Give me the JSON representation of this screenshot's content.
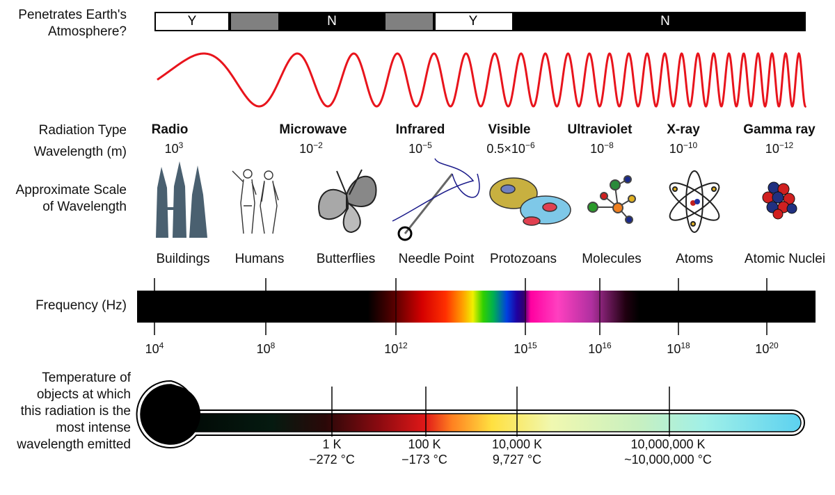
{
  "row_labels": {
    "atmosphere_1": "Penetrates Earth's",
    "atmosphere_2": "Atmosphere?",
    "radiation_type": "Radiation Type",
    "wavelength": "Wavelength (m)",
    "scale_1": "Approximate Scale",
    "scale_2": "of Wavelength",
    "frequency": "Frequency (Hz)",
    "temp_1": "Temperature of",
    "temp_2": "objects at which",
    "temp_3": "this radiation is the",
    "temp_4": "most intense",
    "temp_5": "wavelength emitted"
  },
  "atmosphere": [
    {
      "label": "Y",
      "color": "#ffffff"
    },
    {
      "label": "",
      "color": "#808080"
    },
    {
      "label": "N",
      "color": "#000000"
    },
    {
      "label": "",
      "color": "#808080"
    },
    {
      "label": "Y",
      "color": "#ffffff"
    },
    {
      "label": "N",
      "color": "#000000"
    }
  ],
  "radiation_types": [
    {
      "name": "Radio",
      "base": "10",
      "exp": "3",
      "prefix": ""
    },
    {
      "name": "Microwave",
      "base": "10",
      "exp": "−2",
      "prefix": ""
    },
    {
      "name": "Infrared",
      "base": "10",
      "exp": "−5",
      "prefix": ""
    },
    {
      "name": "Visible",
      "base": "10",
      "exp": "−6",
      "prefix": "0.5×"
    },
    {
      "name": "Ultraviolet",
      "base": "10",
      "exp": "−8",
      "prefix": ""
    },
    {
      "name": "X-ray",
      "base": "10",
      "exp": "−10",
      "prefix": ""
    },
    {
      "name": "Gamma ray",
      "base": "10",
      "exp": "−12",
      "prefix": ""
    }
  ],
  "scale_objects": [
    {
      "name": "Buildings",
      "icon": "building-icon"
    },
    {
      "name": "Humans",
      "icon": "humans-icon"
    },
    {
      "name": "Butterflies",
      "icon": "butterfly-icon"
    },
    {
      "name": "Needle Point",
      "icon": "needle-icon"
    },
    {
      "name": "Protozoans",
      "icon": "protozoan-icon"
    },
    {
      "name": "Molecules",
      "icon": "molecule-icon"
    },
    {
      "name": "Atoms",
      "icon": "atom-icon"
    },
    {
      "name": "Atomic Nuclei",
      "icon": "nucleus-icon"
    }
  ],
  "frequencies": [
    {
      "base": "10",
      "exp": "4"
    },
    {
      "base": "10",
      "exp": "8"
    },
    {
      "base": "10",
      "exp": "12"
    },
    {
      "base": "10",
      "exp": "15"
    },
    {
      "base": "10",
      "exp": "16"
    },
    {
      "base": "10",
      "exp": "18"
    },
    {
      "base": "10",
      "exp": "20"
    }
  ],
  "temperatures": [
    {
      "kelvin": "1 K",
      "celsius": "−272 °C"
    },
    {
      "kelvin": "100 K",
      "celsius": "−173 °C"
    },
    {
      "kelvin": "10,000 K",
      "celsius": "9,727 °C"
    },
    {
      "kelvin": "10,000,000 K",
      "celsius": "~10,000,000 °C"
    }
  ],
  "colors": {
    "wave": "#e8141c",
    "bar": "#000000"
  }
}
